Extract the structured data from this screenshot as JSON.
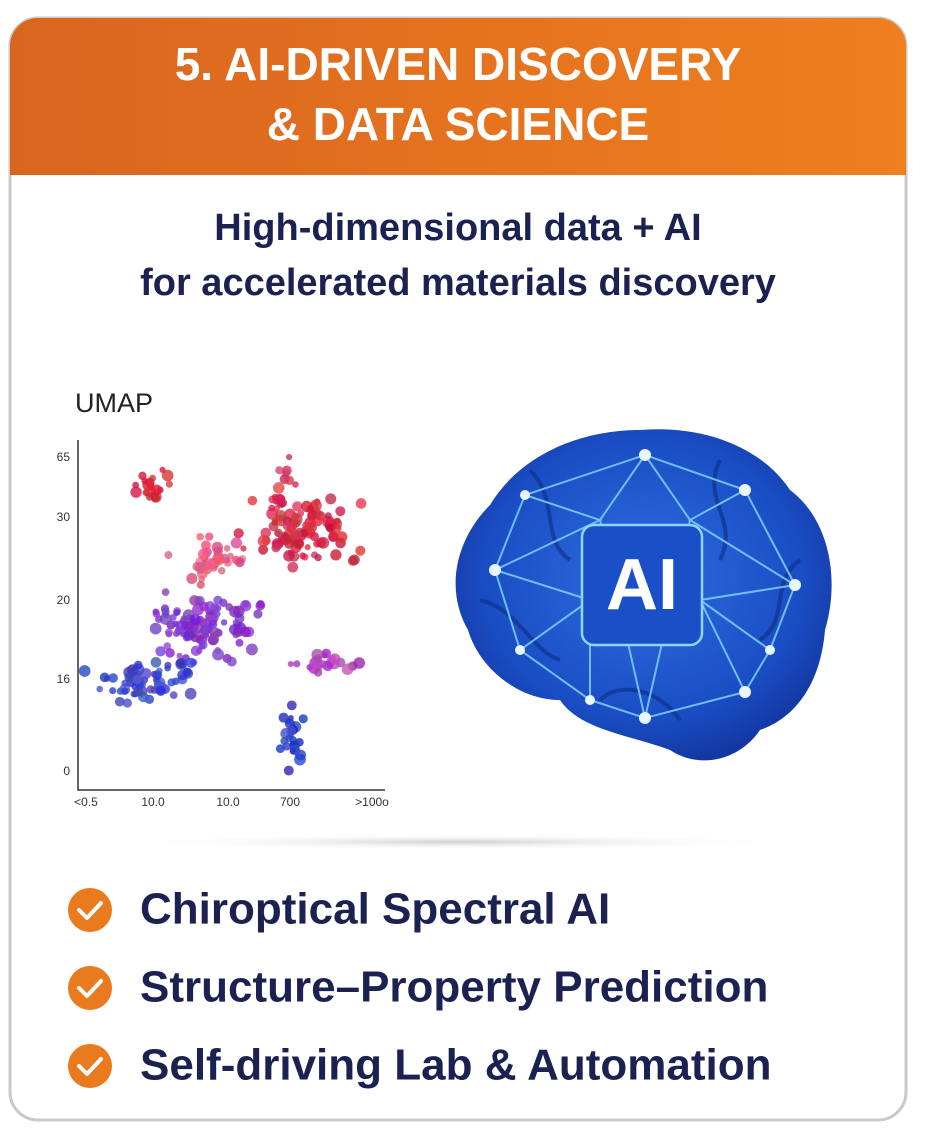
{
  "header": {
    "title_lines": [
      "5. AI-DRIVEN DISCOVERY",
      "& DATA SCIENCE"
    ]
  },
  "subtitle_lines": [
    "High-dimensional data + AI",
    "for accelerated materials discovery"
  ],
  "umap": {
    "label": "UMAP",
    "y_tick_labels": [
      "65",
      "30",
      "20",
      "16",
      "0"
    ],
    "x_tick_labels": [
      "<0.5",
      "10.0",
      "10.0",
      "700",
      ">100o"
    ]
  },
  "brain": {
    "label": "AI"
  },
  "features": [
    "Chiroptical Spectral AI",
    "Structure–Property Prediction",
    "Self-driving Lab & Automation"
  ]
}
